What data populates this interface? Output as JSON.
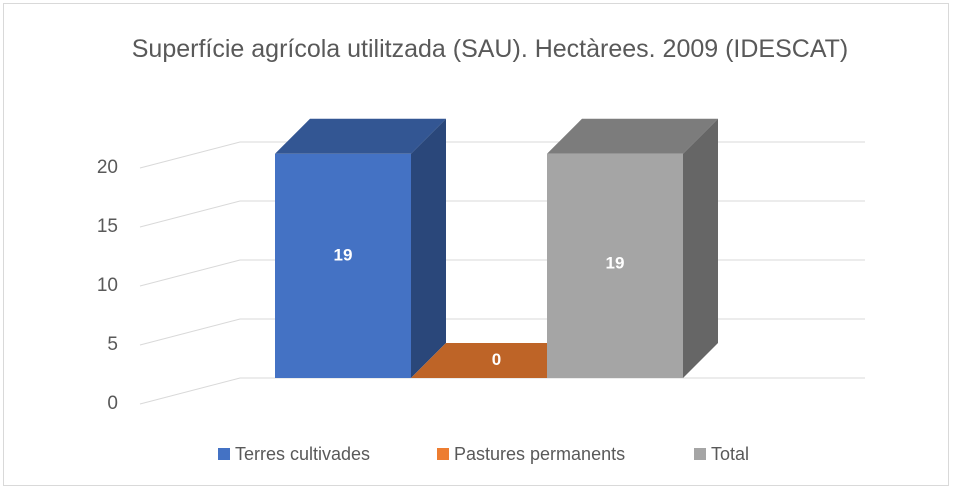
{
  "chart_data": {
    "type": "bar3d",
    "title": "Superfície agrícola utilitzada (SAU). Hectàrees. 2009 (IDESCAT)",
    "categories": [
      null
    ],
    "series": [
      {
        "name": "Terres cultivades",
        "color": "#4472c4",
        "values": [
          19
        ]
      },
      {
        "name": "Pastures permanents",
        "color": "#ed7d31",
        "values": [
          0
        ]
      },
      {
        "name": "Total",
        "color": "#a5a5a5",
        "values": [
          19
        ]
      }
    ],
    "ylim": [
      0,
      20
    ],
    "yticks": [
      0,
      5,
      10,
      15,
      20
    ],
    "grid": true,
    "legend": "bottom"
  }
}
